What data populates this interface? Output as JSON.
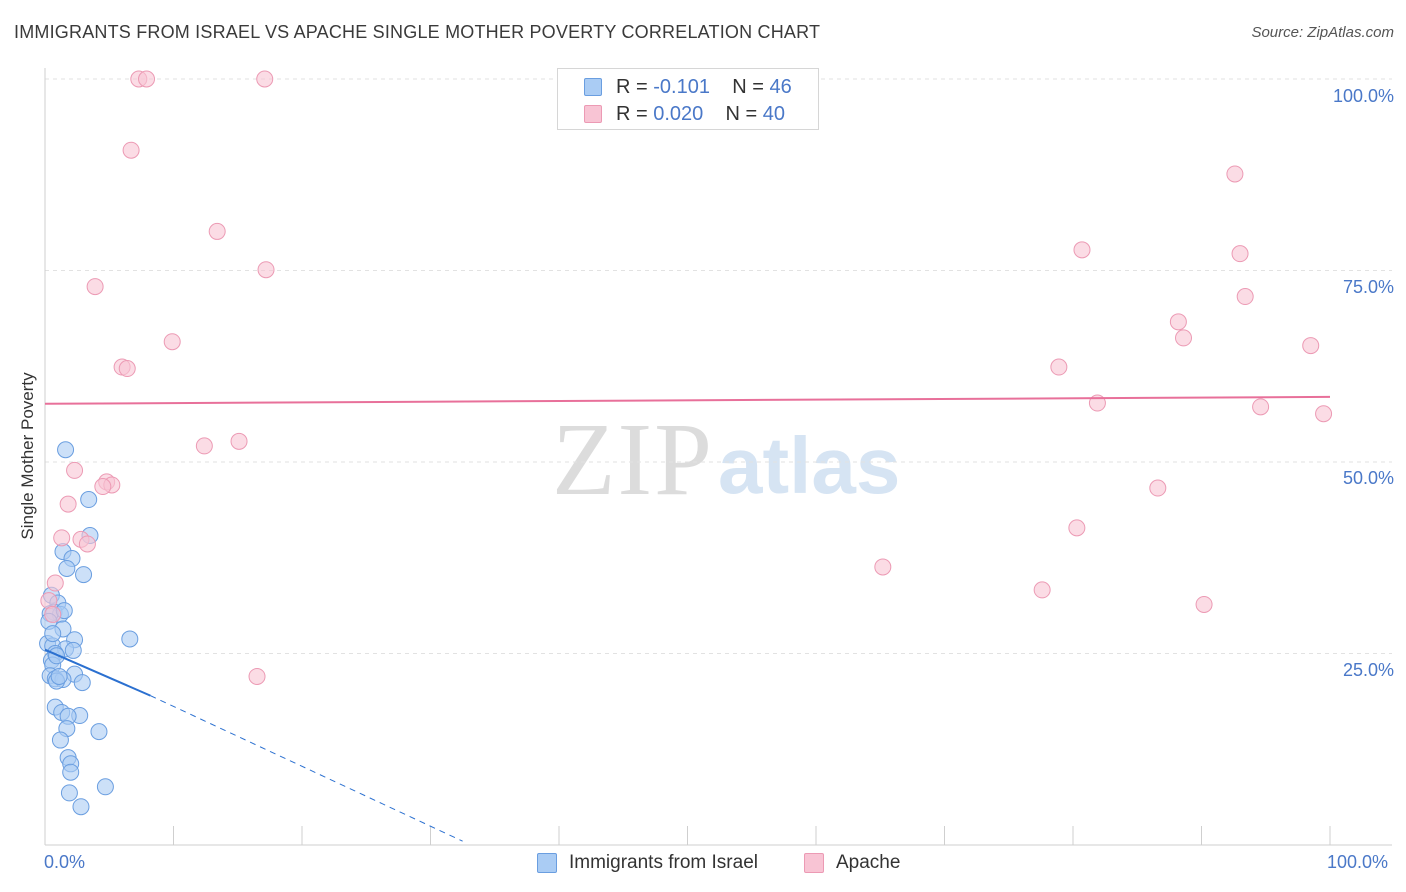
{
  "header": {
    "title": "IMMIGRANTS FROM ISRAEL VS APACHE SINGLE MOTHER POVERTY CORRELATION CHART",
    "source": "Source: ZipAtlas.com"
  },
  "watermark": {
    "zip": "ZIP",
    "atlas": "atlas"
  },
  "stats": [
    {
      "r_label": "R = ",
      "r_value": "-0.101",
      "n_label": "N = ",
      "n_value": "46",
      "color": "#aaccf4"
    },
    {
      "r_label": "R = ",
      "r_value": "0.020",
      "n_label": "N = ",
      "n_value": "40",
      "color": "#f8c4d4"
    }
  ],
  "legend": [
    {
      "label": "Immigrants from Israel",
      "color": "#aaccf4"
    },
    {
      "label": "Apache",
      "color": "#f8c4d4"
    }
  ],
  "colors": {
    "blue_fill": "#aaccf4",
    "blue_stroke": "#6a9ee0",
    "blue_line": "#2b70d0",
    "pink_fill": "#f8c4d4",
    "pink_stroke": "#ec9ab4",
    "pink_line": "#e8709a",
    "grid": "#e2e2e2",
    "tick_label": "#4a78c8"
  },
  "chart_data": {
    "type": "scatter",
    "title": "IMMIGRANTS FROM ISRAEL VS APACHE SINGLE MOTHER POVERTY CORRELATION CHART",
    "xlabel": "",
    "ylabel": "Single Mother Poverty",
    "xlim": [
      0,
      100
    ],
    "ylim": [
      0,
      100
    ],
    "x_tick_labels": [
      "0.0%",
      "100.0%"
    ],
    "y_tick_labels": [
      "25.0%",
      "50.0%",
      "75.0%",
      "100.0%"
    ],
    "y_ticks": [
      25,
      50,
      75,
      100
    ],
    "grid": true,
    "legend_position": "bottom",
    "series": [
      {
        "name": "Immigrants from Israel",
        "color": "#aaccf4",
        "points": [
          [
            1.6,
            51.6
          ],
          [
            3.4,
            45.1
          ],
          [
            3.5,
            40.4
          ],
          [
            1.4,
            38.3
          ],
          [
            2.1,
            37.4
          ],
          [
            1.7,
            36.1
          ],
          [
            3.0,
            35.3
          ],
          [
            0.5,
            32.6
          ],
          [
            1.0,
            31.6
          ],
          [
            0.7,
            30.4
          ],
          [
            1.2,
            30.1
          ],
          [
            0.4,
            30.2
          ],
          [
            0.3,
            29.2
          ],
          [
            1.4,
            28.2
          ],
          [
            6.6,
            26.9
          ],
          [
            2.3,
            26.8
          ],
          [
            0.2,
            26.3
          ],
          [
            0.6,
            26.0
          ],
          [
            1.6,
            25.6
          ],
          [
            2.2,
            25.4
          ],
          [
            0.8,
            25.0
          ],
          [
            0.5,
            24.1
          ],
          [
            0.6,
            23.5
          ],
          [
            2.3,
            22.3
          ],
          [
            0.4,
            22.1
          ],
          [
            0.8,
            21.7
          ],
          [
            1.4,
            21.6
          ],
          [
            2.9,
            21.2
          ],
          [
            0.9,
            21.4
          ],
          [
            0.8,
            18.0
          ],
          [
            1.3,
            17.3
          ],
          [
            2.7,
            16.9
          ],
          [
            1.8,
            16.8
          ],
          [
            1.7,
            15.2
          ],
          [
            4.2,
            14.8
          ],
          [
            1.2,
            13.7
          ],
          [
            1.8,
            11.4
          ],
          [
            2.0,
            10.6
          ],
          [
            2.0,
            9.5
          ],
          [
            1.9,
            6.8
          ],
          [
            2.8,
            5.0
          ],
          [
            4.7,
            7.6
          ],
          [
            0.9,
            24.7
          ],
          [
            1.1,
            22.0
          ],
          [
            0.6,
            27.6
          ],
          [
            1.5,
            30.6
          ]
        ],
        "trend": {
          "x": [
            0,
            8.2
          ],
          "y": [
            25.5,
            19.5
          ],
          "dashed_extension": {
            "x": [
              8.2,
              32.5
            ],
            "y": [
              19.5,
              0.5
            ]
          }
        }
      },
      {
        "name": "Apache",
        "color": "#f8c4d4",
        "points": [
          [
            7.3,
            100
          ],
          [
            7.9,
            100
          ],
          [
            17.1,
            100
          ],
          [
            6.7,
            90.7
          ],
          [
            13.4,
            80.1
          ],
          [
            17.2,
            75.1
          ],
          [
            3.9,
            72.9
          ],
          [
            9.9,
            65.7
          ],
          [
            6.0,
            62.4
          ],
          [
            6.4,
            62.2
          ],
          [
            15.1,
            52.7
          ],
          [
            12.4,
            52.1
          ],
          [
            2.3,
            48.9
          ],
          [
            4.8,
            47.4
          ],
          [
            5.2,
            47.0
          ],
          [
            4.5,
            46.8
          ],
          [
            1.8,
            44.5
          ],
          [
            1.3,
            40.1
          ],
          [
            2.8,
            39.9
          ],
          [
            3.3,
            39.3
          ],
          [
            0.8,
            34.2
          ],
          [
            0.3,
            31.9
          ],
          [
            0.6,
            30.1
          ],
          [
            16.5,
            22.0
          ],
          [
            92.6,
            87.6
          ],
          [
            80.7,
            77.7
          ],
          [
            93.0,
            77.2
          ],
          [
            93.4,
            71.6
          ],
          [
            88.2,
            68.3
          ],
          [
            88.6,
            66.2
          ],
          [
            98.5,
            65.2
          ],
          [
            78.9,
            62.4
          ],
          [
            81.9,
            57.7
          ],
          [
            94.6,
            57.2
          ],
          [
            99.5,
            56.3
          ],
          [
            86.6,
            46.6
          ],
          [
            80.3,
            41.4
          ],
          [
            65.2,
            36.3
          ],
          [
            77.6,
            33.3
          ],
          [
            90.2,
            31.4
          ]
        ],
        "extra_points_note": "",
        "trend": {
          "x": [
            0,
            100
          ],
          "y": [
            57.6,
            58.5
          ]
        }
      }
    ]
  }
}
